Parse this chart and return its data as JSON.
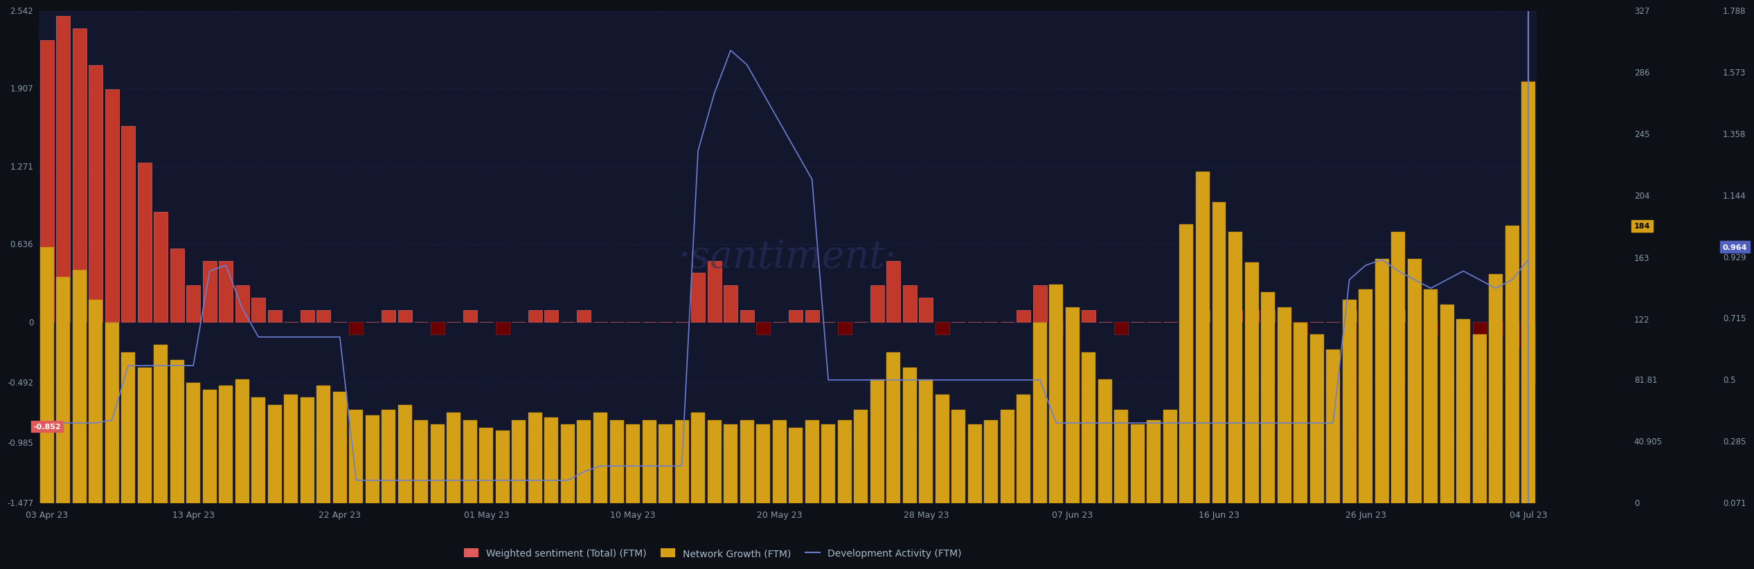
{
  "background_color": "#0d1117",
  "plot_bg_color": "#12172e",
  "watermark": "·santiment·",
  "x_labels": [
    "03 Apr 23",
    "13 Apr 23",
    "22 Apr 23",
    "01 May 23",
    "10 May 23",
    "20 May 23",
    "28 May 23",
    "07 Jun 23",
    "16 Jun 23",
    "26 Jun 23",
    "04 Jul 23"
  ],
  "left_axis": {
    "ticks": [
      2.542,
      1.907,
      1.271,
      0.636,
      0,
      -0.492,
      -0.985,
      -1.477
    ],
    "min": -1.477,
    "max": 2.542,
    "last_value": -0.852,
    "last_color": "#e05c5c"
  },
  "middle_axis": {
    "ticks": [
      327,
      286,
      245,
      204,
      163,
      122,
      81.81,
      40.905,
      0
    ],
    "min": 0,
    "max": 327,
    "last_value": 184,
    "last_color": "#d4a017"
  },
  "right_axis": {
    "ticks": [
      1.788,
      1.573,
      1.358,
      1.144,
      0.929,
      0.715,
      0.5,
      0.285,
      0.071
    ],
    "min": 0.071,
    "max": 1.788,
    "last_value": 0.964,
    "last_color": "#5060c0"
  },
  "ws_color_pos": "#c0392b",
  "ws_color_neg": "#6b0000",
  "ws_edge_pos": "#e05c5c",
  "ws_edge_neg": "#8b2020",
  "ng_color": "#d4a017",
  "ng_edge": "#b8860b",
  "da_color": "#6b7fd4",
  "grid_color": "#1e2545",
  "grid_alpha": 0.8,
  "legend_labels": [
    "Weighted sentiment (Total) (FTM)",
    "Network Growth (FTM)",
    "Development Activity (FTM)"
  ],
  "legend_colors": [
    "#e05c5c",
    "#d4a017",
    "#6b7fd4"
  ]
}
